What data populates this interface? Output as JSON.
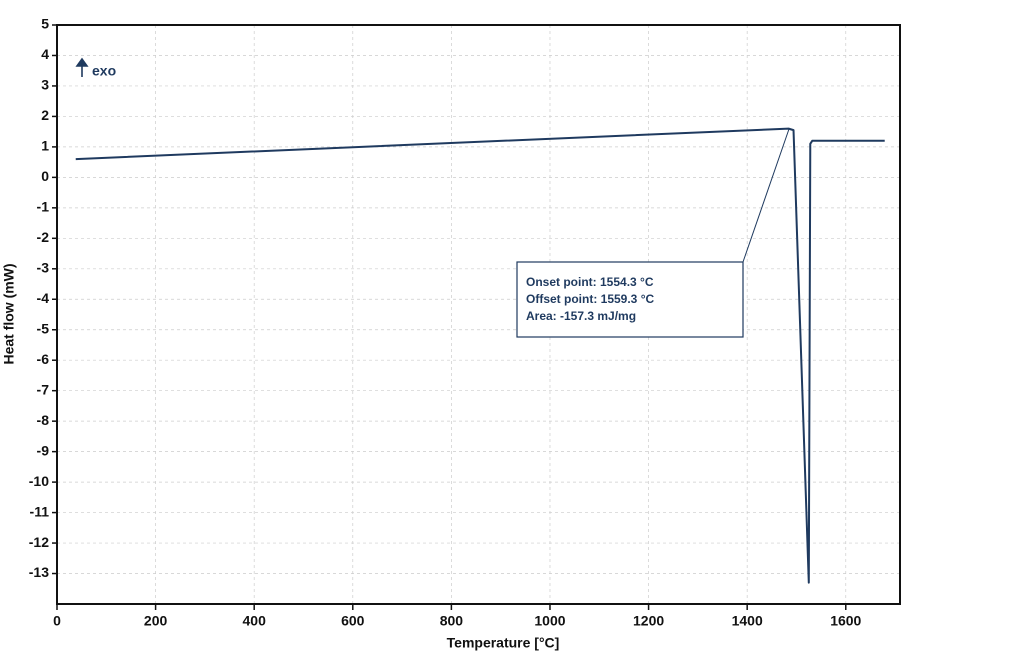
{
  "chart_data": {
    "type": "line",
    "xlabel": "Temperature [°C]",
    "ylabel": "Heat flow (mW)",
    "x": [
      38,
      1484,
      1494,
      1525,
      1528,
      1532,
      1679
    ],
    "series": [
      {
        "color": "#1f3a5f",
        "values": [
          0.6,
          1.6,
          1.55,
          -13.3,
          1.1,
          1.2,
          1.2
        ]
      }
    ],
    "xlim": [
      0,
      1710
    ],
    "ylim": [
      -14,
      5
    ],
    "xticks": [
      0,
      200,
      400,
      600,
      800,
      1000,
      1200,
      1400,
      1600
    ],
    "yticks": [
      -13,
      -12,
      -11,
      -10,
      -9,
      -8,
      -7,
      -6,
      -5,
      -4,
      -3,
      -2,
      -1,
      0,
      1,
      2,
      3,
      4,
      5
    ],
    "grid": true,
    "annotations": [
      "Onset point: 1554.3 °C",
      "Offset point: 1559.3 °C",
      "Area: -157.3 mJ/mg"
    ],
    "exo_label": "exo"
  }
}
